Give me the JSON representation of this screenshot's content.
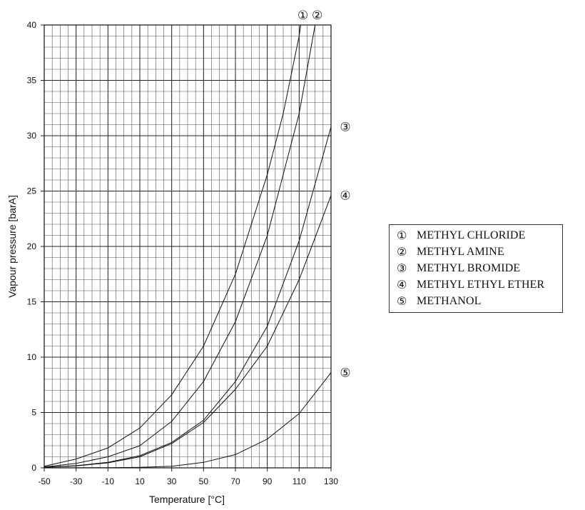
{
  "chart_data": {
    "type": "line",
    "title": "",
    "xlabel": "Temperature [°C]",
    "ylabel": "Vapour pressure [barA]",
    "xlim": [
      -50,
      130
    ],
    "ylim": [
      0,
      40
    ],
    "xticks": [
      -50,
      -30,
      -10,
      10,
      30,
      50,
      70,
      90,
      110,
      130
    ],
    "yticks": [
      0,
      5,
      10,
      15,
      20,
      25,
      30,
      35,
      40
    ],
    "grid": true,
    "legend_position": "right",
    "series": [
      {
        "name": "METHYL CHLORIDE",
        "marker": "①",
        "x": [
          -50,
          -30,
          -10,
          10,
          30,
          50,
          70,
          90,
          100,
          110,
          111
        ],
        "y": [
          0.15,
          0.8,
          1.8,
          3.6,
          6.6,
          11.0,
          17.5,
          26.5,
          32.0,
          39.0,
          40.0
        ]
      },
      {
        "name": "METHYL AMINE",
        "marker": "②",
        "x": [
          -50,
          -30,
          -10,
          10,
          30,
          50,
          70,
          90,
          110,
          120
        ],
        "y": [
          0.08,
          0.4,
          1.0,
          2.0,
          4.2,
          7.8,
          13.2,
          21.0,
          32.0,
          40.0
        ]
      },
      {
        "name": "METHYL BROMIDE",
        "marker": "③",
        "x": [
          -50,
          -30,
          -10,
          10,
          30,
          50,
          70,
          90,
          110,
          130
        ],
        "y": [
          0.05,
          0.2,
          0.5,
          1.1,
          2.3,
          4.3,
          7.8,
          12.8,
          20.5,
          30.8
        ]
      },
      {
        "name": "METHYL ETHYL ETHER",
        "marker": "④",
        "x": [
          -50,
          -30,
          -10,
          10,
          30,
          50,
          70,
          90,
          110,
          130
        ],
        "y": [
          0.04,
          0.18,
          0.45,
          1.0,
          2.2,
          4.1,
          7.1,
          11.0,
          17.0,
          24.6
        ]
      },
      {
        "name": "METHANOL",
        "marker": "⑤",
        "x": [
          -50,
          -10,
          10,
          30,
          50,
          70,
          90,
          110,
          130
        ],
        "y": [
          0.0,
          0.02,
          0.05,
          0.15,
          0.5,
          1.2,
          2.6,
          4.9,
          8.6
        ]
      }
    ]
  }
}
